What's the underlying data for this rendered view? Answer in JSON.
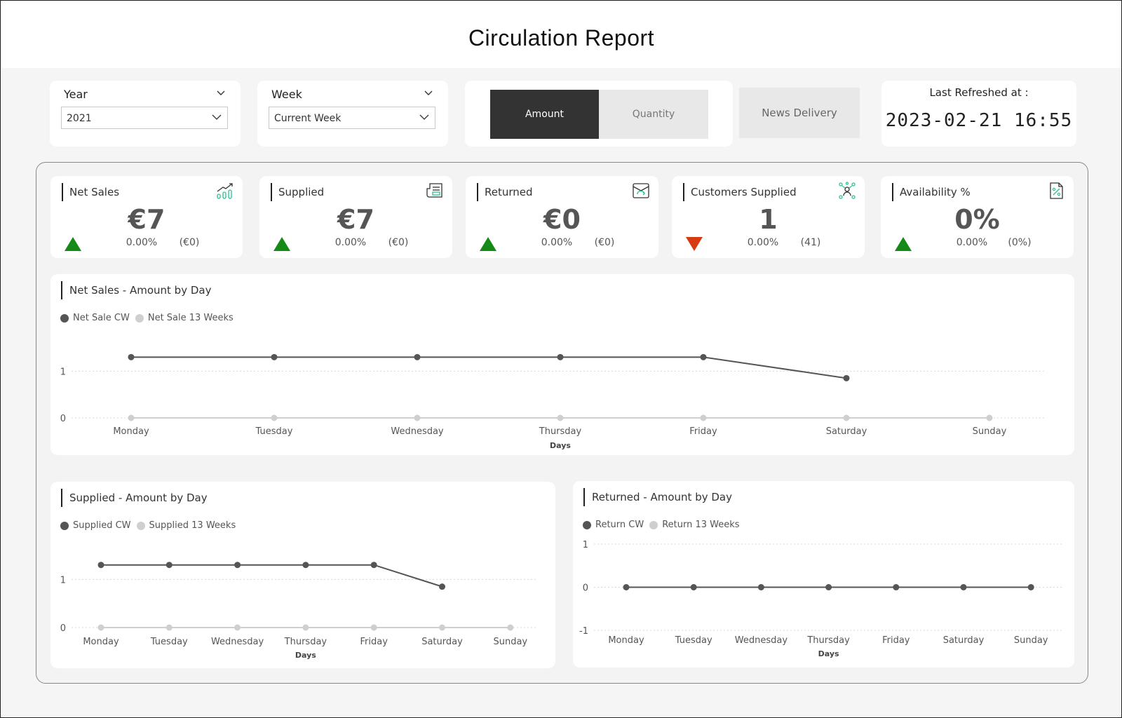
{
  "page": {
    "title": "Circulation Report"
  },
  "filters": {
    "year": {
      "label": "Year",
      "value": "2021"
    },
    "week": {
      "label": "Week",
      "value": "Current Week"
    }
  },
  "toggle": {
    "amount_label": "Amount",
    "quantity_label": "Quantity",
    "selected": "Amount"
  },
  "news_delivery": {
    "label": "News Delivery"
  },
  "refresh": {
    "label": "Last Refreshed at :",
    "value": "2023-02-21 16:55"
  },
  "colors": {
    "up": "#168a16",
    "down": "#d73a12",
    "cw": "#555555",
    "avg": "#cfcfcf",
    "accent": "#2bbf93"
  },
  "kpis": [
    {
      "name": "Net Sales",
      "icon": "trend-chart-icon",
      "value": "€7",
      "trend": "up",
      "pct": "0.00%",
      "diff": "(€0)"
    },
    {
      "name": "Supplied",
      "icon": "newspaper-icon",
      "value": "€7",
      "trend": "up",
      "pct": "0.00%",
      "diff": "(€0)"
    },
    {
      "name": "Returned",
      "icon": "return-box-icon",
      "value": "€0",
      "trend": "up",
      "pct": "0.00%",
      "diff": "(€0)"
    },
    {
      "name": "Customers Supplied",
      "icon": "network-users-icon",
      "value": "1",
      "trend": "down",
      "pct": "0.00%",
      "diff": "(41)"
    },
    {
      "name": "Availability %",
      "icon": "percent-document-icon",
      "value": "0%",
      "trend": "up",
      "pct": "0.00%",
      "diff": "(0%)"
    }
  ],
  "chart_data": [
    {
      "type": "line",
      "title": "Net Sales - Amount by Day",
      "xlabel": "Days",
      "ylabel": "",
      "categories": [
        "Monday",
        "Tuesday",
        "Wednesday",
        "Thursday",
        "Friday",
        "Saturday",
        "Sunday"
      ],
      "y_ticks": [
        0,
        1
      ],
      "ylim": [
        0,
        1.5
      ],
      "grid": true,
      "legend_position": "top-left",
      "series": [
        {
          "name": "Net Sale CW",
          "values": [
            1.3,
            1.3,
            1.3,
            1.3,
            1.3,
            0.85,
            null
          ]
        },
        {
          "name": "Net Sale 13 Weeks",
          "values": [
            0,
            0,
            0,
            0,
            0,
            0,
            0
          ]
        }
      ]
    },
    {
      "type": "line",
      "title": "Supplied - Amount by Day",
      "xlabel": "Days",
      "ylabel": "",
      "categories": [
        "Monday",
        "Tuesday",
        "Wednesday",
        "Thursday",
        "Friday",
        "Saturday",
        "Sunday"
      ],
      "y_ticks": [
        0,
        1
      ],
      "ylim": [
        0,
        1.5
      ],
      "grid": true,
      "legend_position": "top-left",
      "series": [
        {
          "name": "Supplied CW",
          "values": [
            1.3,
            1.3,
            1.3,
            1.3,
            1.3,
            0.85,
            null
          ]
        },
        {
          "name": "Supplied 13 Weeks",
          "values": [
            0,
            0,
            0,
            0,
            0,
            0,
            0
          ]
        }
      ]
    },
    {
      "type": "line",
      "title": "Returned - Amount by Day",
      "xlabel": "Days",
      "ylabel": "",
      "categories": [
        "Monday",
        "Tuesday",
        "Wednesday",
        "Thursday",
        "Friday",
        "Saturday",
        "Sunday"
      ],
      "y_ticks": [
        -1,
        0,
        1
      ],
      "ylim": [
        -1,
        1
      ],
      "grid": true,
      "legend_position": "top-left",
      "series": [
        {
          "name": "Return CW",
          "values": [
            0,
            0,
            0,
            0,
            0,
            0,
            0
          ]
        },
        {
          "name": "Return 13 Weeks",
          "values": [
            0,
            0,
            0,
            0,
            0,
            0,
            0
          ]
        }
      ]
    }
  ]
}
